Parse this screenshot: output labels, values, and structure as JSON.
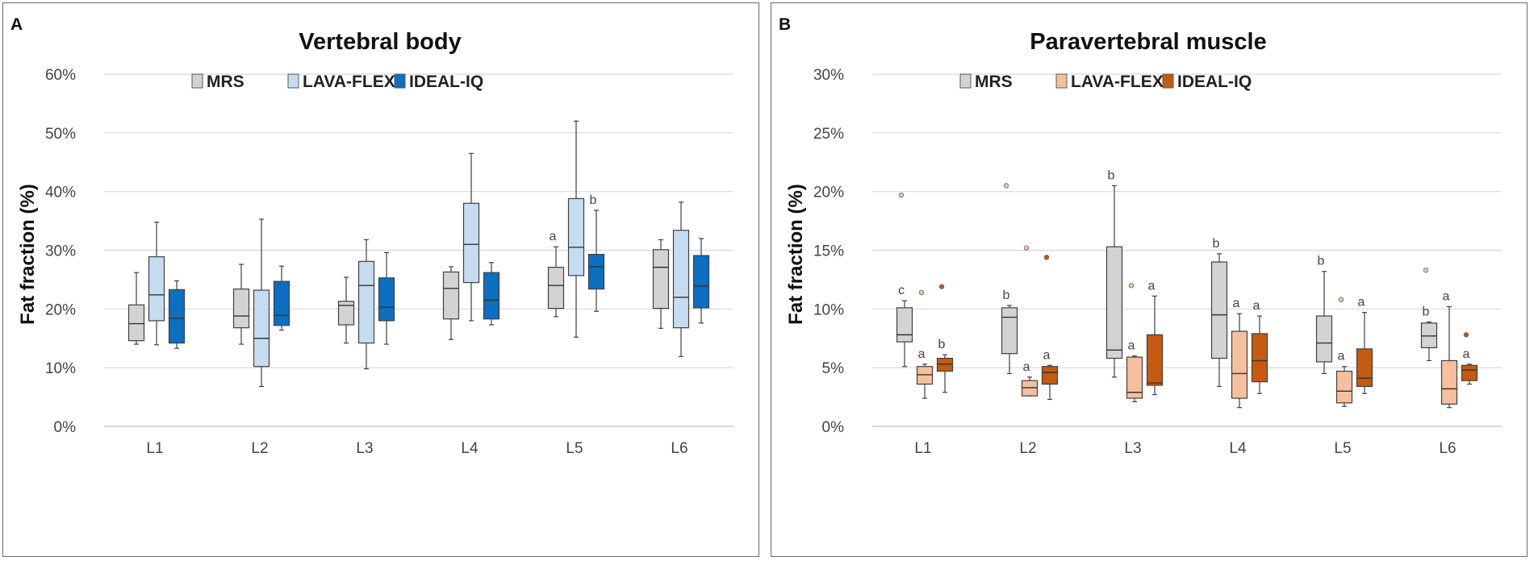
{
  "chart_data": [
    {
      "type": "boxplot",
      "panel_label": "A",
      "title": "Vertebral body",
      "ylabel": "Fat fraction  (%)",
      "xlabel": "",
      "ylim": [
        0,
        60
      ],
      "yticks": [
        "0%",
        "10%",
        "20%",
        "30%",
        "40%",
        "50%",
        "60%"
      ],
      "categories": [
        "L1",
        "L2",
        "L3",
        "L4",
        "L5",
        "L6"
      ],
      "series": [
        {
          "name": "MRS",
          "color": "#d3d3d3",
          "boxes": [
            {
              "min": 14.0,
              "q1": 14.6,
              "median": 17.5,
              "q3": 20.7,
              "max": 26.2,
              "label": ""
            },
            {
              "min": 14.0,
              "q1": 16.8,
              "median": 18.8,
              "q3": 23.4,
              "max": 27.6,
              "label": ""
            },
            {
              "min": 14.2,
              "q1": 17.3,
              "median": 20.6,
              "q3": 21.3,
              "max": 25.4,
              "label": ""
            },
            {
              "min": 14.8,
              "q1": 18.3,
              "median": 23.5,
              "q3": 26.3,
              "max": 27.2,
              "label": ""
            },
            {
              "min": 18.7,
              "q1": 20.1,
              "median": 24.0,
              "q3": 27.1,
              "max": 30.6,
              "label": "a"
            },
            {
              "min": 16.7,
              "q1": 20.1,
              "median": 27.1,
              "q3": 30.1,
              "max": 31.8,
              "label": ""
            }
          ]
        },
        {
          "name": "LAVA-FLEX",
          "color": "#c6dcf0",
          "boxes": [
            {
              "min": 13.9,
              "q1": 18.0,
              "median": 22.4,
              "q3": 28.9,
              "max": 34.8,
              "label": ""
            },
            {
              "min": 6.8,
              "q1": 10.2,
              "median": 15.0,
              "q3": 23.2,
              "max": 35.3,
              "label": ""
            },
            {
              "min": 9.8,
              "q1": 14.2,
              "median": 24.0,
              "q3": 28.1,
              "max": 31.8,
              "label": ""
            },
            {
              "min": 18.0,
              "q1": 24.5,
              "median": 31.0,
              "q3": 38.0,
              "max": 46.5,
              "label": ""
            },
            {
              "min": 15.2,
              "q1": 25.7,
              "median": 30.5,
              "q3": 38.8,
              "max": 52.0,
              "label": ""
            },
            {
              "min": 11.9,
              "q1": 16.8,
              "median": 22.0,
              "q3": 33.4,
              "max": 38.2,
              "label": ""
            }
          ]
        },
        {
          "name": "IDEAL-IQ",
          "color": "#0b6fc2",
          "boxes": [
            {
              "min": 13.3,
              "q1": 14.2,
              "median": 18.4,
              "q3": 23.3,
              "max": 24.8,
              "label": ""
            },
            {
              "min": 16.4,
              "q1": 17.2,
              "median": 18.9,
              "q3": 24.7,
              "max": 27.3,
              "label": ""
            },
            {
              "min": 14.0,
              "q1": 18.0,
              "median": 20.3,
              "q3": 25.3,
              "max": 29.6,
              "label": ""
            },
            {
              "min": 17.3,
              "q1": 18.3,
              "median": 21.5,
              "q3": 26.2,
              "max": 27.9,
              "label": ""
            },
            {
              "min": 19.6,
              "q1": 23.4,
              "median": 27.2,
              "q3": 29.3,
              "max": 36.8,
              "label": "b"
            },
            {
              "min": 17.6,
              "q1": 20.2,
              "median": 23.9,
              "q3": 29.1,
              "max": 32.0,
              "label": ""
            }
          ]
        }
      ]
    },
    {
      "type": "boxplot",
      "panel_label": "B",
      "title": "Paravertebral muscle",
      "ylabel": "Fat fraction  (%)",
      "xlabel": "",
      "ylim": [
        0,
        30
      ],
      "yticks": [
        "0%",
        "5%",
        "10%",
        "15%",
        "20%",
        "25%",
        "30%"
      ],
      "categories": [
        "L1",
        "L2",
        "L3",
        "L4",
        "L5",
        "L6"
      ],
      "series": [
        {
          "name": "MRS",
          "color": "#d3d3d3",
          "boxes": [
            {
              "min": 5.1,
              "q1": 7.2,
              "median": 7.8,
              "q3": 10.1,
              "max": 10.7,
              "outliers": [
                19.7
              ],
              "label": "c"
            },
            {
              "min": 4.5,
              "q1": 6.2,
              "median": 9.3,
              "q3": 10.1,
              "max": 10.3,
              "outliers": [
                20.5
              ],
              "label": "b"
            },
            {
              "min": 4.2,
              "q1": 5.8,
              "median": 6.5,
              "q3": 15.3,
              "max": 20.5,
              "outliers": [],
              "label": "b"
            },
            {
              "min": 3.4,
              "q1": 5.8,
              "median": 9.5,
              "q3": 14.0,
              "max": 14.7,
              "outliers": [],
              "label": "b"
            },
            {
              "min": 4.5,
              "q1": 5.5,
              "median": 7.1,
              "q3": 9.4,
              "max": 13.2,
              "outliers": [],
              "label": "b"
            },
            {
              "min": 5.6,
              "q1": 6.7,
              "median": 7.7,
              "q3": 8.8,
              "max": 8.9,
              "outliers": [
                13.3
              ],
              "label": "b"
            }
          ]
        },
        {
          "name": "LAVA-FLEX",
          "color": "#f5c09e",
          "boxes": [
            {
              "min": 2.4,
              "q1": 3.6,
              "median": 4.4,
              "q3": 5.1,
              "max": 5.3,
              "outliers": [
                11.4
              ],
              "label": "a"
            },
            {
              "min": 2.6,
              "q1": 2.6,
              "median": 3.3,
              "q3": 3.9,
              "max": 4.2,
              "outliers": [
                15.2
              ],
              "label": "a"
            },
            {
              "min": 2.1,
              "q1": 2.4,
              "median": 2.9,
              "q3": 5.9,
              "max": 6.0,
              "outliers": [
                12.0
              ],
              "label": "a"
            },
            {
              "min": 1.6,
              "q1": 2.4,
              "median": 4.5,
              "q3": 8.1,
              "max": 9.6,
              "outliers": [],
              "label": "a"
            },
            {
              "min": 1.7,
              "q1": 2.0,
              "median": 3.0,
              "q3": 4.7,
              "max": 5.1,
              "outliers": [
                10.8
              ],
              "label": "a"
            },
            {
              "min": 1.6,
              "q1": 1.9,
              "median": 3.2,
              "q3": 5.6,
              "max": 10.2,
              "outliers": [],
              "label": "a"
            }
          ]
        },
        {
          "name": "IDEAL-IQ",
          "color": "#c55a11",
          "boxes": [
            {
              "min": 2.9,
              "q1": 4.7,
              "median": 5.3,
              "q3": 5.8,
              "max": 6.1,
              "outliers": [
                11.9
              ],
              "label": "b"
            },
            {
              "min": 2.3,
              "q1": 3.6,
              "median": 4.6,
              "q3": 5.1,
              "max": 5.2,
              "outliers": [
                14.4
              ],
              "label": "a"
            },
            {
              "min": 2.7,
              "q1": 3.5,
              "median": 3.7,
              "q3": 7.8,
              "max": 11.1,
              "outliers": [],
              "label": "a"
            },
            {
              "min": 2.8,
              "q1": 3.8,
              "median": 5.6,
              "q3": 7.9,
              "max": 9.4,
              "outliers": [],
              "label": "a"
            },
            {
              "min": 2.8,
              "q1": 3.4,
              "median": 4.1,
              "q3": 6.6,
              "max": 9.7,
              "outliers": [],
              "label": "a"
            },
            {
              "min": 3.6,
              "q1": 3.9,
              "median": 4.8,
              "q3": 5.2,
              "max": 5.3,
              "outliers": [
                7.8
              ],
              "label": "a"
            }
          ]
        }
      ]
    }
  ]
}
